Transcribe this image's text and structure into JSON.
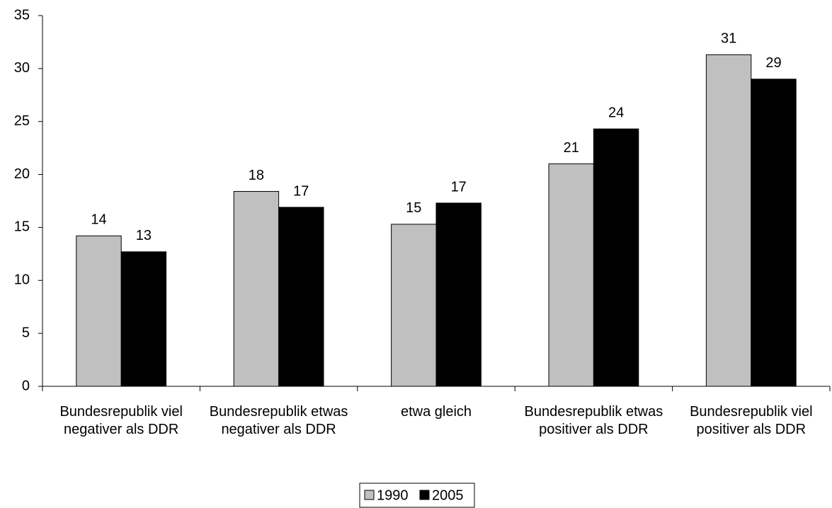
{
  "chart_data": {
    "type": "bar",
    "categories": [
      "Bundesrepublik viel negativer als DDR",
      "Bundesrepublik etwas negativer als DDR",
      "etwa gleich",
      "Bundesrepublik etwas positiver als DDR",
      "Bundesrepublik viel positiver als DDR"
    ],
    "series": [
      {
        "name": "1990",
        "color": "#c0c0c0",
        "values": [
          14.2,
          18.4,
          15.3,
          21.0,
          31.3
        ],
        "value_labels": [
          "14",
          "18",
          "15",
          "21",
          "31"
        ]
      },
      {
        "name": "2005",
        "color": "#000000",
        "values": [
          12.7,
          16.9,
          17.3,
          24.3,
          29.0
        ],
        "value_labels": [
          "13",
          "17",
          "17",
          "24",
          "29"
        ]
      }
    ],
    "ylim": [
      0,
      35
    ],
    "yticks": [
      0,
      5,
      10,
      15,
      20,
      25,
      30,
      35
    ],
    "grid": false,
    "legend": "bottom"
  }
}
